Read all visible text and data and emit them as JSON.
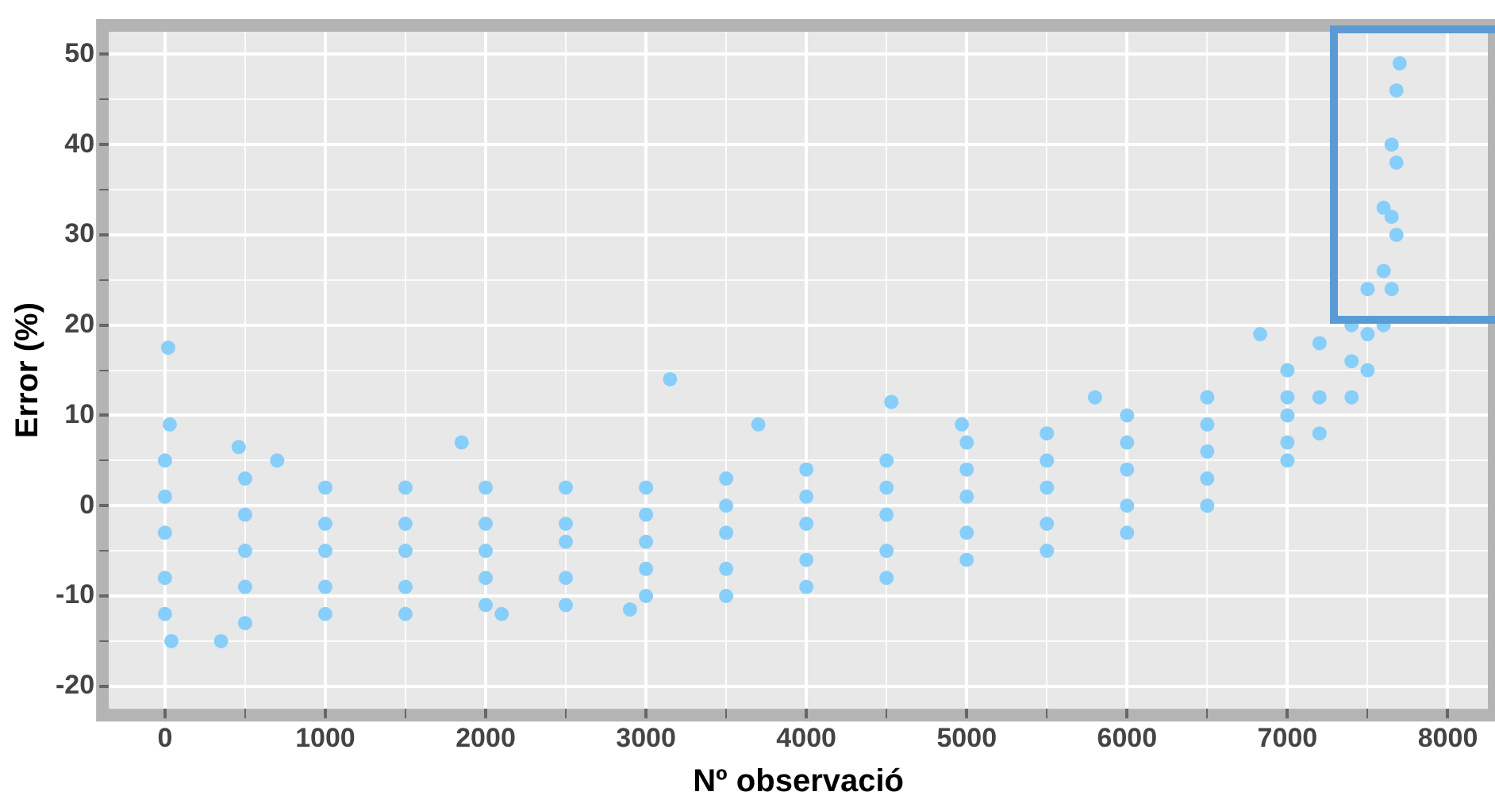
{
  "chart_data": {
    "type": "scatter",
    "xlabel": "Nº observació",
    "ylabel": "Error (%)",
    "xlim": [
      -350,
      8250
    ],
    "ylim": [
      -22.5,
      52.5
    ],
    "xticks": [
      0,
      {
        "value": 500,
        "label": null
      },
      1000,
      {
        "value": 1500,
        "label": null
      },
      2000,
      {
        "value": 2500,
        "label": null
      },
      3000,
      {
        "value": 3500,
        "label": null
      },
      4000,
      {
        "value": 4500,
        "label": null
      },
      5000,
      {
        "value": 5500,
        "label": null
      },
      6000,
      {
        "value": 6500,
        "label": null
      },
      7000,
      {
        "value": 7500,
        "label": null
      },
      8000
    ],
    "yticks": [
      -20,
      {
        "value": -15,
        "label": null
      },
      -10,
      {
        "value": -5,
        "label": null
      },
      0,
      {
        "value": 5,
        "label": null
      },
      10,
      {
        "value": 15,
        "label": null
      },
      20,
      {
        "value": 25,
        "label": null
      },
      30,
      {
        "value": 35,
        "label": null
      },
      40,
      {
        "value": 45,
        "label": null
      },
      50
    ],
    "grid": true,
    "marker": "circle",
    "legend": false,
    "series": [
      {
        "color": "#87cefa",
        "x": [
          0,
          0,
          0,
          0,
          0,
          500,
          500,
          500,
          500,
          500,
          1000,
          1000,
          1000,
          1000,
          1000,
          1500,
          1500,
          1500,
          1500,
          1500,
          2000,
          2000,
          2000,
          2000,
          2000,
          2500,
          2500,
          2500,
          2500,
          2500,
          3000,
          3000,
          3000,
          3000,
          3000,
          3500,
          3500,
          3500,
          3500,
          3500,
          4000,
          4000,
          4000,
          4000,
          4000,
          4500,
          4500,
          4500,
          4500,
          4500,
          5000,
          5000,
          5000,
          5000,
          5000,
          5500,
          5500,
          5500,
          5500,
          5500,
          6000,
          6000,
          6000,
          6000,
          6000,
          6500,
          6500,
          6500,
          6500,
          6500,
          7000,
          7000,
          7000,
          7000,
          7000,
          7200,
          7200,
          7200,
          7400,
          7400,
          7400,
          7500,
          7500,
          7500,
          7600,
          7600,
          7600,
          7650,
          7650,
          7650,
          7680,
          7680,
          7680,
          7700,
          20,
          30,
          40,
          350,
          460,
          700,
          1850,
          2100,
          3150,
          3700,
          4530,
          4970,
          5800,
          6830,
          2900
        ],
        "values": [
          5,
          1,
          -3,
          -8,
          -12,
          3,
          -1,
          -5,
          -9,
          -13,
          2,
          -2,
          -5,
          -9,
          -12,
          2,
          -2,
          -5,
          -9,
          -12,
          2,
          -2,
          -5,
          -8,
          -11,
          2,
          -2,
          -4,
          -8,
          -11,
          2,
          -1,
          -4,
          -7,
          -10,
          3,
          0,
          -3,
          -7,
          -10,
          4,
          1,
          -2,
          -6,
          -9,
          5,
          2,
          -1,
          -5,
          -8,
          7,
          4,
          1,
          -3,
          -6,
          8,
          5,
          2,
          -2,
          -5,
          10,
          7,
          4,
          0,
          -3,
          12,
          9,
          6,
          3,
          0,
          15,
          12,
          10,
          7,
          5,
          18,
          12,
          8,
          20,
          16,
          12,
          24,
          19,
          15,
          33,
          26,
          20,
          40,
          32,
          24,
          46,
          38,
          30,
          49,
          17.5,
          9,
          -15,
          -15,
          6.5,
          5,
          7,
          -12,
          14,
          9,
          11.5,
          9,
          12,
          19,
          -11.5
        ]
      }
    ]
  }
}
